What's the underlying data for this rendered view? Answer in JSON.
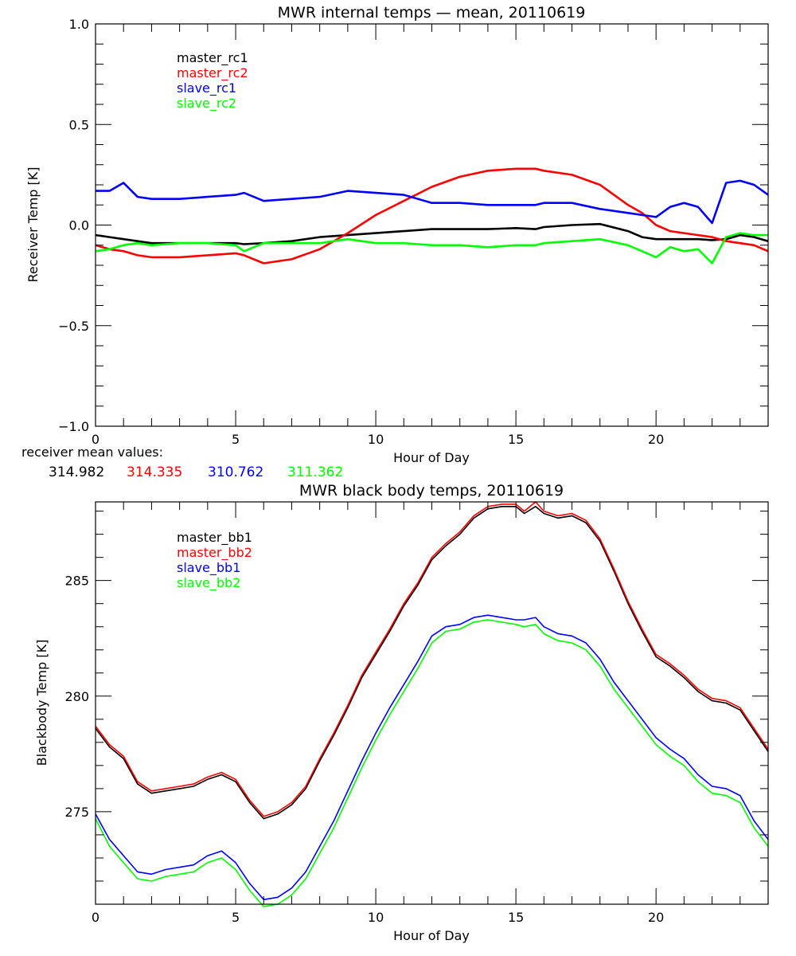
{
  "chart_data": [
    {
      "type": "line",
      "title": "MWR internal temps — mean, 20110619",
      "xlabel": "Hour of Day",
      "ylabel": "Receiver Temp [K]",
      "xlim": [
        0,
        24
      ],
      "ylim": [
        -1.0,
        1.0
      ],
      "xticks": [
        0,
        5,
        10,
        15,
        20
      ],
      "xtick_labels": [
        "0",
        "5",
        "10",
        "15",
        "20"
      ],
      "yticks": [
        -1.0,
        -0.5,
        0.0,
        0.5,
        1.0
      ],
      "ytick_labels": [
        "−1.0",
        "−0.5",
        "0.0",
        "0.5",
        "1.0"
      ],
      "x_minor_step": 1,
      "y_minor_step": 0.1,
      "grid": false,
      "legend_position": "top-left",
      "x": [
        0,
        0.5,
        1,
        1.5,
        2,
        3,
        4,
        5,
        5.3,
        6,
        7,
        8,
        9,
        10,
        11,
        12,
        13,
        14,
        15,
        15.7,
        16,
        17,
        18,
        19,
        19.5,
        20,
        20.5,
        21,
        21.5,
        22,
        22.5,
        23,
        23.5,
        24
      ],
      "series": [
        {
          "name": "master_rc1",
          "color": "#000000",
          "values": [
            -0.05,
            -0.06,
            -0.07,
            -0.08,
            -0.09,
            -0.09,
            -0.09,
            -0.09,
            -0.095,
            -0.09,
            -0.08,
            -0.06,
            -0.05,
            -0.04,
            -0.03,
            -0.02,
            -0.02,
            -0.02,
            -0.015,
            -0.02,
            -0.01,
            0.0,
            0.005,
            -0.03,
            -0.06,
            -0.07,
            -0.07,
            -0.07,
            -0.07,
            -0.075,
            -0.07,
            -0.05,
            -0.06,
            -0.08
          ]
        },
        {
          "name": "master_rc2",
          "color": "#ff0000",
          "values": [
            -0.1,
            -0.12,
            -0.13,
            -0.15,
            -0.16,
            -0.16,
            -0.15,
            -0.14,
            -0.15,
            -0.19,
            -0.17,
            -0.12,
            -0.04,
            0.05,
            0.12,
            0.19,
            0.24,
            0.27,
            0.28,
            0.28,
            0.27,
            0.25,
            0.2,
            0.1,
            0.06,
            0.0,
            -0.03,
            -0.04,
            -0.05,
            -0.06,
            -0.08,
            -0.09,
            -0.1,
            -0.13
          ]
        },
        {
          "name": "slave_rc1",
          "color": "#0000ff",
          "values": [
            0.17,
            0.17,
            0.21,
            0.14,
            0.13,
            0.13,
            0.14,
            0.15,
            0.16,
            0.12,
            0.13,
            0.14,
            0.17,
            0.16,
            0.15,
            0.11,
            0.11,
            0.1,
            0.1,
            0.1,
            0.11,
            0.11,
            0.08,
            0.06,
            0.05,
            0.04,
            0.09,
            0.11,
            0.09,
            0.01,
            0.21,
            0.22,
            0.2,
            0.15
          ]
        },
        {
          "name": "slave_rc2",
          "color": "#00ff00",
          "values": [
            -0.13,
            -0.12,
            -0.1,
            -0.09,
            -0.1,
            -0.09,
            -0.09,
            -0.1,
            -0.13,
            -0.09,
            -0.09,
            -0.09,
            -0.07,
            -0.09,
            -0.09,
            -0.1,
            -0.1,
            -0.11,
            -0.1,
            -0.1,
            -0.09,
            -0.08,
            -0.07,
            -0.1,
            -0.13,
            -0.16,
            -0.11,
            -0.13,
            -0.12,
            -0.19,
            -0.06,
            -0.04,
            -0.05,
            -0.05
          ]
        }
      ]
    },
    {
      "type": "line",
      "title": "MWR black body temps, 20110619",
      "xlabel": "Hour of Day",
      "ylabel": "Blackbody Temp [K]",
      "xlim": [
        0,
        24
      ],
      "ylim": [
        271.0,
        288.4
      ],
      "xticks": [
        0,
        5,
        10,
        15,
        20
      ],
      "xtick_labels": [
        "0",
        "5",
        "10",
        "15",
        "20"
      ],
      "yticks": [
        275,
        280,
        285
      ],
      "ytick_labels": [
        "275",
        "280",
        "285"
      ],
      "x_minor_step": 1,
      "y_minor_step": 1,
      "grid": false,
      "legend_position": "top-left",
      "x": [
        0,
        0.5,
        1,
        1.5,
        2,
        2.5,
        3,
        3.5,
        4,
        4.5,
        5,
        5.5,
        6,
        6.5,
        7,
        7.5,
        8,
        8.5,
        9,
        9.5,
        10,
        10.5,
        11,
        11.5,
        12,
        12.5,
        13,
        13.5,
        14,
        14.5,
        15,
        15.3,
        15.7,
        16,
        16.5,
        17,
        17.5,
        18,
        18.5,
        19,
        19.5,
        20,
        20.5,
        21,
        21.5,
        22,
        22.5,
        23,
        23.5,
        24
      ],
      "series": [
        {
          "name": "master_bb1",
          "color": "#000000",
          "values": [
            278.6,
            277.8,
            277.3,
            276.2,
            275.8,
            275.9,
            276.0,
            276.1,
            276.4,
            276.6,
            276.3,
            275.4,
            274.7,
            274.9,
            275.3,
            276.0,
            277.2,
            278.3,
            279.5,
            280.8,
            281.8,
            282.8,
            283.9,
            284.8,
            285.9,
            286.5,
            287.0,
            287.7,
            288.1,
            288.2,
            288.2,
            287.9,
            288.2,
            287.9,
            287.7,
            287.8,
            287.5,
            286.7,
            285.4,
            284.0,
            282.8,
            281.7,
            281.3,
            280.8,
            280.2,
            279.8,
            279.7,
            279.4,
            278.5,
            277.6
          ]
        },
        {
          "name": "master_bb2",
          "color": "#ff0000",
          "values": [
            278.7,
            277.9,
            277.4,
            276.3,
            275.9,
            276.0,
            276.1,
            276.2,
            276.5,
            276.7,
            276.4,
            275.5,
            274.8,
            275.0,
            275.4,
            276.1,
            277.3,
            278.4,
            279.6,
            280.9,
            281.9,
            282.9,
            284.0,
            284.9,
            286.0,
            286.6,
            287.1,
            287.8,
            288.2,
            288.3,
            288.3,
            288.0,
            288.4,
            288.0,
            287.8,
            287.9,
            287.6,
            286.8,
            285.5,
            284.1,
            282.9,
            281.8,
            281.4,
            280.9,
            280.3,
            279.9,
            279.8,
            279.5,
            278.6,
            277.7
          ]
        },
        {
          "name": "slave_bb1",
          "color": "#0000ff",
          "values": [
            274.9,
            273.8,
            273.1,
            272.4,
            272.3,
            272.5,
            272.6,
            272.7,
            273.1,
            273.3,
            272.8,
            271.9,
            271.2,
            271.3,
            271.7,
            272.4,
            273.5,
            274.6,
            275.9,
            277.2,
            278.4,
            279.5,
            280.5,
            281.5,
            282.6,
            283.0,
            283.1,
            283.4,
            283.5,
            283.4,
            283.3,
            283.3,
            283.4,
            283.0,
            282.7,
            282.6,
            282.3,
            281.6,
            280.6,
            279.8,
            279.0,
            278.2,
            277.7,
            277.3,
            276.6,
            276.1,
            276.0,
            275.7,
            274.6,
            273.8
          ]
        },
        {
          "name": "slave_bb2",
          "color": "#00ff00",
          "values": [
            274.7,
            273.5,
            272.8,
            272.1,
            272.0,
            272.2,
            272.3,
            272.4,
            272.8,
            273.0,
            272.5,
            271.6,
            270.9,
            271.0,
            271.4,
            272.1,
            273.2,
            274.3,
            275.6,
            276.9,
            278.1,
            279.2,
            280.2,
            281.2,
            282.3,
            282.8,
            282.9,
            283.2,
            283.3,
            283.2,
            283.1,
            283.0,
            283.1,
            282.7,
            282.4,
            282.3,
            282.0,
            281.3,
            280.3,
            279.5,
            278.7,
            277.9,
            277.4,
            277.0,
            276.3,
            275.8,
            275.7,
            275.4,
            274.3,
            273.5
          ]
        }
      ]
    }
  ],
  "annotations": {
    "receiver_mean_label": "receiver mean values:",
    "receiver_mean_values": [
      {
        "text": "314.982",
        "color": "#000000"
      },
      {
        "text": "314.335",
        "color": "#ff0000"
      },
      {
        "text": "310.762",
        "color": "#0000ff"
      },
      {
        "text": "311.362",
        "color": "#00ff00"
      }
    ]
  }
}
